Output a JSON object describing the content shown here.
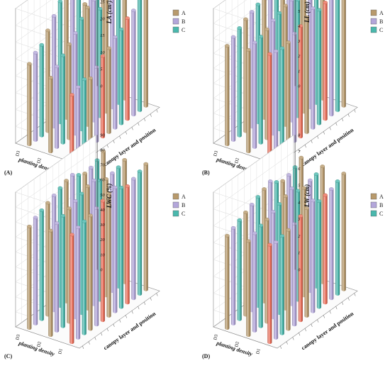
{
  "figure": {
    "legend_entries": [
      "A",
      "B",
      "C"
    ],
    "colors": {
      "A": "#b89a6c",
      "B": "#b3a6da",
      "C": "#4ab8ad",
      "front": "#ec6f5a"
    }
  },
  "chart_data": [
    {
      "type": "bar",
      "panel_label": "(A)",
      "title": "",
      "ylabel": "LA (cm²)",
      "xlabel": "canopy layer and position",
      "zlabel": "planting density",
      "series": [
        {
          "name": "A"
        },
        {
          "name": "B"
        },
        {
          "name": "C"
        }
      ],
      "density_ticks": [
        "D1",
        "D2",
        "D3"
      ],
      "zlim": [
        0,
        40
      ],
      "z_ticks": [
        0,
        5,
        10,
        15,
        20,
        25,
        30,
        35,
        40
      ],
      "value_rows": [
        [
          19,
          20,
          21,
          20,
          22,
          24,
          25,
          27,
          28,
          30,
          31,
          34,
          36
        ],
        [
          22,
          24,
          26,
          28,
          30,
          33,
          35,
          36,
          32,
          34,
          36,
          38,
          40
        ],
        [
          24,
          26,
          27,
          30,
          33,
          36,
          38,
          39,
          35,
          30,
          34,
          36,
          38
        ]
      ]
    },
    {
      "type": "bar",
      "panel_label": "(B)",
      "title": "",
      "ylabel": "LL (cm)",
      "xlabel": "canopy layer and position",
      "zlabel": "planting density",
      "series": [
        {
          "name": "A"
        },
        {
          "name": "B"
        },
        {
          "name": "C"
        }
      ],
      "density_ticks": [
        "D1",
        "D2",
        "D3"
      ],
      "zlim": [
        0,
        9
      ],
      "z_ticks": [
        0,
        1,
        2,
        3,
        4,
        5,
        6,
        7,
        8,
        9
      ],
      "value_rows": [
        [
          7.0,
          6.9,
          6.8,
          6.9,
          7.2,
          7.4,
          7.7,
          8.0,
          7.6,
          7.8,
          8.0,
          8.2,
          8.3
        ],
        [
          6.8,
          7.0,
          7.1,
          7.3,
          7.6,
          7.8,
          8.0,
          8.1,
          7.8,
          7.9,
          8.1,
          8.2,
          8.4
        ],
        [
          6.6,
          6.9,
          7.2,
          7.5,
          7.7,
          7.9,
          8.2,
          8.3,
          7.9,
          7.8,
          8.0,
          8.1,
          8.3
        ]
      ]
    },
    {
      "type": "bar",
      "panel_label": "(C)",
      "title": "",
      "ylabel": "LWC (%)",
      "xlabel": "canopy layer and position",
      "zlabel": "planting density",
      "series": [
        {
          "name": "A"
        },
        {
          "name": "B"
        },
        {
          "name": "C"
        }
      ],
      "density_ticks": [
        "D1",
        "D2",
        "D3"
      ],
      "zlim": [
        0,
        90
      ],
      "z_ticks": [
        0,
        10,
        20,
        30,
        40,
        50,
        60,
        70,
        80,
        90
      ],
      "value_rows": [
        [
          72,
          74,
          75,
          76,
          78,
          80,
          82,
          83,
          80,
          78,
          80,
          82,
          84
        ],
        [
          70,
          72,
          74,
          76,
          78,
          80,
          82,
          83,
          80,
          78,
          79,
          80,
          82
        ],
        [
          68,
          71,
          73,
          75,
          77,
          79,
          81,
          82,
          79,
          77,
          78,
          80,
          83
        ]
      ]
    },
    {
      "type": "bar",
      "panel_label": "(D)",
      "title": "",
      "ylabel": "LW (cm)",
      "xlabel": "canopy layer and position",
      "zlabel": "planting density",
      "series": [
        {
          "name": "A"
        },
        {
          "name": "B"
        },
        {
          "name": "C"
        }
      ],
      "density_ticks": [
        "D1",
        "D2",
        "D3"
      ],
      "zlim": [
        0,
        8
      ],
      "z_ticks": [
        0,
        1,
        2,
        3,
        4,
        5,
        6,
        7,
        8
      ],
      "value_rows": [
        [
          5.8,
          5.7,
          5.8,
          5.9,
          6.0,
          6.2,
          6.4,
          6.6,
          6.3,
          6.4,
          6.5,
          6.7,
          6.9
        ],
        [
          5.6,
          5.8,
          6.0,
          6.1,
          6.3,
          6.5,
          6.7,
          6.9,
          6.5,
          6.4,
          6.6,
          6.7,
          6.9
        ],
        [
          5.5,
          5.7,
          5.9,
          6.1,
          6.3,
          6.5,
          6.7,
          6.9,
          6.6,
          6.4,
          6.5,
          6.7,
          7.0
        ]
      ]
    }
  ]
}
